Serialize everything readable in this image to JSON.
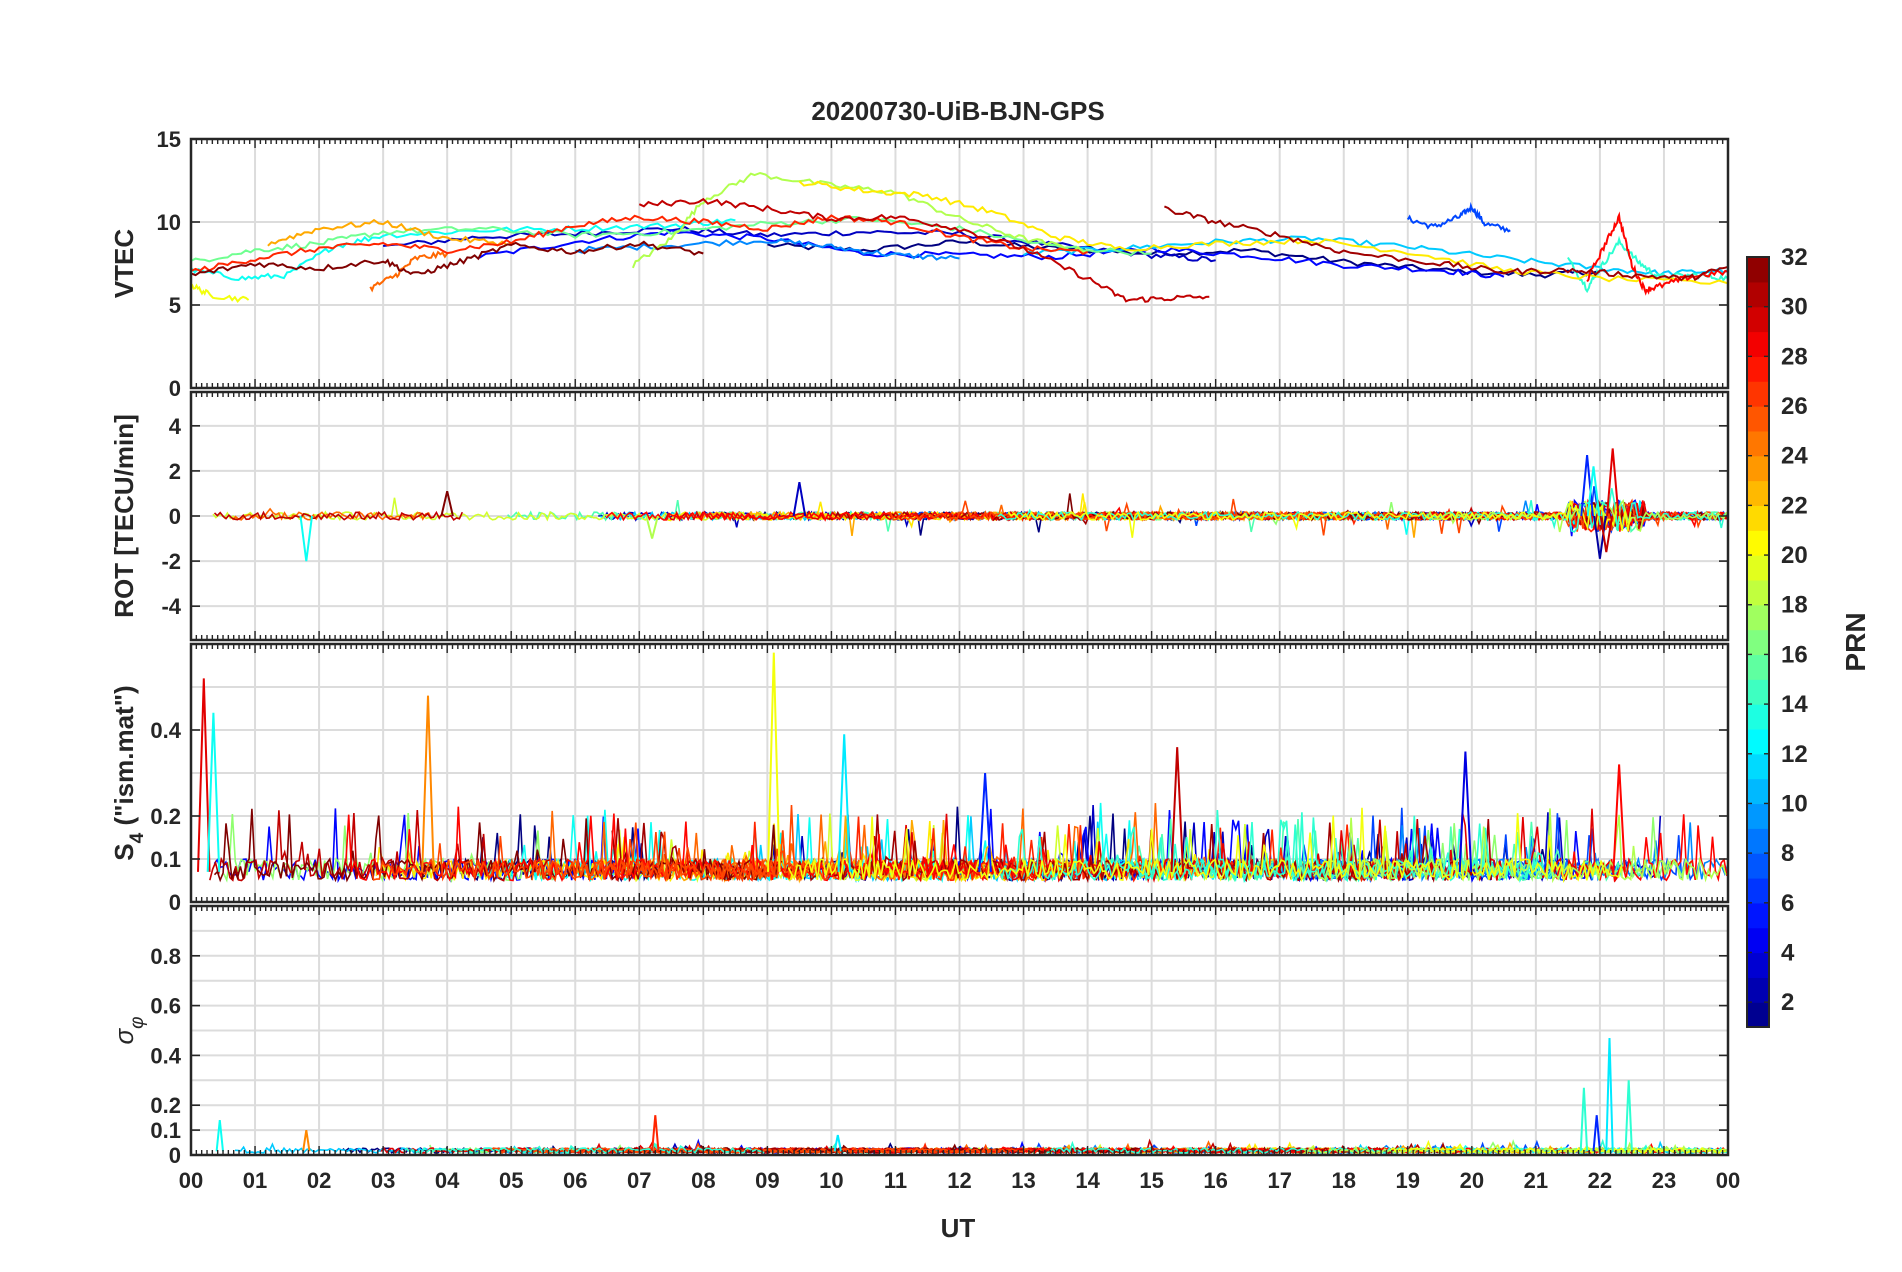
{
  "chart_data": {
    "type": "line",
    "title": "20200730-UiB-BJN-GPS",
    "xlabel": "UT",
    "x_range_hours": [
      0,
      24
    ],
    "x_ticks": [
      "00",
      "01",
      "02",
      "03",
      "04",
      "05",
      "06",
      "07",
      "08",
      "09",
      "10",
      "11",
      "12",
      "13",
      "14",
      "15",
      "16",
      "17",
      "18",
      "19",
      "20",
      "21",
      "22",
      "23",
      "00"
    ],
    "colorbar": {
      "label": "PRN",
      "colormap": "jet",
      "range": [
        1,
        32
      ],
      "ticks": [
        2,
        4,
        6,
        8,
        10,
        12,
        14,
        16,
        18,
        20,
        22,
        24,
        26,
        28,
        30,
        32
      ]
    },
    "panels": [
      {
        "id": "vtec",
        "ylabel": "VTEC",
        "ylim": [
          0,
          15
        ],
        "yticks": [
          0,
          5,
          10,
          15
        ],
        "grid": true,
        "series": [
          {
            "prn": 1,
            "points": [
              [
                9.0,
                8.6
              ],
              [
                10.5,
                8.3
              ],
              [
                12.0,
                8.8
              ],
              [
                13.5,
                8.4
              ],
              [
                15.0,
                8.1
              ],
              [
                16.5,
                8.3
              ],
              [
                18.0,
                7.6
              ],
              [
                19.5,
                7.1
              ],
              [
                21.0,
                6.8
              ],
              [
                22.0,
                7.0
              ]
            ]
          },
          {
            "prn": 3,
            "points": [
              [
                3.0,
                8.5
              ],
              [
                4.5,
                9.1
              ],
              [
                6.0,
                9.3
              ],
              [
                7.5,
                9.6
              ],
              [
                9.0,
                9.2
              ],
              [
                10.5,
                9.4
              ],
              [
                12.0,
                9.3
              ],
              [
                13.5,
                8.6
              ],
              [
                15.0,
                8.0
              ],
              [
                16.0,
                7.7
              ]
            ]
          },
          {
            "prn": 5,
            "points": [
              [
                4.5,
                7.9
              ],
              [
                6.0,
                8.8
              ],
              [
                7.5,
                9.4
              ],
              [
                9.0,
                9.0
              ],
              [
                10.5,
                8.1
              ],
              [
                12.0,
                8.0
              ],
              [
                13.5,
                7.9
              ],
              [
                15.0,
                8.4
              ],
              [
                16.5,
                8.0
              ],
              [
                18.0,
                7.4
              ],
              [
                19.5,
                7.1
              ],
              [
                20.5,
                6.7
              ]
            ]
          },
          {
            "prn": 7,
            "points": [
              [
                19.0,
                10.2
              ],
              [
                19.4,
                9.7
              ],
              [
                19.8,
                10.3
              ],
              [
                20.0,
                10.9
              ],
              [
                20.2,
                9.9
              ],
              [
                20.6,
                9.5
              ]
            ]
          },
          {
            "prn": 9,
            "points": [
              [
                6.0,
                8.3
              ],
              [
                7.5,
                8.6
              ],
              [
                9.0,
                8.9
              ],
              [
                10.0,
                8.5
              ],
              [
                11.0,
                8.0
              ],
              [
                12.0,
                7.8
              ]
            ]
          },
          {
            "prn": 11,
            "points": [
              [
                13.0,
                8.1
              ],
              [
                14.5,
                8.4
              ],
              [
                16.0,
                8.8
              ],
              [
                17.5,
                9.0
              ],
              [
                19.0,
                8.5
              ],
              [
                20.5,
                7.8
              ],
              [
                22.0,
                7.2
              ],
              [
                23.0,
                6.9
              ],
              [
                24.0,
                7.1
              ]
            ]
          },
          {
            "prn": 13,
            "points": [
              [
                0.0,
                7.1
              ],
              [
                0.8,
                6.6
              ],
              [
                1.5,
                6.8
              ],
              [
                2.2,
                8.5
              ],
              [
                3.0,
                9.2
              ],
              [
                4.5,
                9.5
              ],
              [
                6.0,
                9.6
              ],
              [
                7.5,
                9.8
              ],
              [
                8.5,
                10.1
              ]
            ]
          },
          {
            "prn": 14,
            "points": [
              [
                21.5,
                7.8
              ],
              [
                21.8,
                6.0
              ],
              [
                22.0,
                7.2
              ],
              [
                22.3,
                8.8
              ],
              [
                22.6,
                7.6
              ],
              [
                22.9,
                6.7
              ],
              [
                23.5,
                6.8
              ],
              [
                24.0,
                6.6
              ]
            ]
          },
          {
            "prn": 16,
            "points": [
              [
                0.0,
                7.6
              ],
              [
                1.0,
                8.3
              ],
              [
                2.0,
                8.7
              ],
              [
                3.0,
                9.4
              ],
              [
                4.5,
                9.6
              ],
              [
                6.0,
                9.2
              ],
              [
                7.5,
                9.4
              ],
              [
                9.0,
                9.9
              ],
              [
                10.5,
                10.2
              ],
              [
                12.0,
                9.6
              ],
              [
                13.5,
                8.5
              ],
              [
                15.0,
                8.1
              ]
            ]
          },
          {
            "prn": 18,
            "points": [
              [
                6.9,
                7.4
              ],
              [
                7.5,
                9.0
              ],
              [
                8.0,
                11.3
              ],
              [
                8.8,
                12.9
              ],
              [
                10.0,
                12.2
              ],
              [
                11.0,
                11.8
              ],
              [
                12.0,
                10.2
              ],
              [
                13.0,
                9.0
              ],
              [
                14.0,
                8.2
              ]
            ]
          },
          {
            "prn": 20,
            "points": [
              [
                0.0,
                6.2
              ],
              [
                0.3,
                5.6
              ],
              [
                0.9,
                5.3
              ]
            ]
          },
          {
            "prn": 21,
            "points": [
              [
                9.5,
                12.4
              ],
              [
                10.5,
                11.9
              ],
              [
                11.5,
                11.6
              ],
              [
                12.5,
                10.6
              ],
              [
                13.5,
                9.1
              ],
              [
                14.5,
                8.4
              ],
              [
                16.0,
                8.7
              ],
              [
                17.5,
                8.9
              ],
              [
                19.0,
                8.2
              ],
              [
                20.5,
                7.1
              ],
              [
                22.0,
                6.6
              ],
              [
                24.0,
                6.3
              ]
            ]
          },
          {
            "prn": 23,
            "points": [
              [
                1.2,
                8.7
              ],
              [
                2.0,
                9.6
              ],
              [
                3.0,
                10.0
              ],
              [
                4.0,
                9.0
              ],
              [
                5.0,
                8.7
              ]
            ]
          },
          {
            "prn": 25,
            "points": [
              [
                2.8,
                6.0
              ],
              [
                3.2,
                6.8
              ],
              [
                3.5,
                7.8
              ],
              [
                4.0,
                8.1
              ]
            ]
          },
          {
            "prn": 27,
            "points": [
              [
                0.0,
                7.0
              ],
              [
                1.0,
                7.8
              ],
              [
                2.0,
                8.4
              ],
              [
                3.0,
                8.7
              ],
              [
                4.0,
                8.3
              ],
              [
                5.0,
                8.8
              ],
              [
                6.0,
                9.8
              ],
              [
                7.0,
                10.3
              ],
              [
                8.0,
                10.0
              ],
              [
                9.0,
                9.6
              ],
              [
                10.0,
                10.3
              ],
              [
                11.0,
                10.0
              ],
              [
                12.0,
                9.1
              ],
              [
                13.0,
                8.4
              ],
              [
                14.0,
                8.2
              ]
            ]
          },
          {
            "prn": 28,
            "points": [
              [
                21.8,
                6.5
              ],
              [
                22.1,
                8.8
              ],
              [
                22.3,
                10.3
              ],
              [
                22.5,
                7.4
              ],
              [
                22.7,
                5.9
              ],
              [
                22.9,
                6.1
              ],
              [
                23.4,
                6.7
              ],
              [
                24.0,
                7.0
              ]
            ]
          },
          {
            "prn": 30,
            "points": [
              [
                7.0,
                11.0
              ],
              [
                8.0,
                11.3
              ],
              [
                9.0,
                10.8
              ],
              [
                10.0,
                10.2
              ],
              [
                11.0,
                10.3
              ],
              [
                12.0,
                9.6
              ],
              [
                13.0,
                8.4
              ],
              [
                14.0,
                6.6
              ],
              [
                14.6,
                5.3
              ],
              [
                15.2,
                5.4
              ],
              [
                15.9,
                5.5
              ]
            ]
          },
          {
            "prn": 31,
            "points": [
              [
                15.2,
                10.8
              ],
              [
                16.0,
                10.0
              ],
              [
                17.0,
                9.2
              ],
              [
                18.0,
                8.2
              ],
              [
                19.5,
                7.5
              ],
              [
                20.5,
                7.0
              ],
              [
                21.5,
                7.1
              ],
              [
                22.5,
                6.8
              ],
              [
                23.4,
                6.6
              ],
              [
                24.0,
                7.3
              ]
            ]
          },
          {
            "prn": 32,
            "points": [
              [
                0.0,
                6.8
              ],
              [
                1.0,
                7.5
              ],
              [
                2.0,
                7.2
              ],
              [
                3.0,
                7.7
              ],
              [
                3.5,
                6.8
              ],
              [
                4.2,
                7.6
              ],
              [
                5.0,
                8.6
              ],
              [
                6.0,
                8.2
              ],
              [
                7.0,
                8.7
              ],
              [
                8.0,
                8.1
              ]
            ]
          }
        ]
      },
      {
        "id": "rot",
        "ylabel": "ROT [TECU/min]",
        "ylim": [
          -5.5,
          5.5
        ],
        "yticks": [
          -4,
          -2,
          0,
          2,
          4
        ],
        "grid": true,
        "spikes": [
          {
            "prn": 13,
            "hour": 1.8,
            "value": -2.0
          },
          {
            "prn": 3,
            "hour": 9.5,
            "value": 1.5
          },
          {
            "prn": 6,
            "hour": 21.8,
            "value": 2.7
          },
          {
            "prn": 13,
            "hour": 21.9,
            "value": 2.2
          },
          {
            "prn": 2,
            "hour": 22.0,
            "value": -1.9
          },
          {
            "prn": 29,
            "hour": 22.2,
            "value": 3.0
          },
          {
            "prn": 30,
            "hour": 22.1,
            "value": -1.6
          },
          {
            "prn": 18,
            "hour": 7.2,
            "value": -1.0
          },
          {
            "prn": 32,
            "hour": 4.0,
            "value": 1.1
          }
        ]
      },
      {
        "id": "s4",
        "ylabel": "S4 (\"ism.mat\")",
        "ylabel_parts": {
          "main": "S",
          "sub": "4",
          "rest": " (\"ism.mat\")"
        },
        "ylim": [
          0,
          0.6
        ],
        "yticks": [
          0,
          0.1,
          0.2,
          0.4
        ],
        "grid": true,
        "peaks": [
          {
            "prn": 29,
            "hour": 0.2,
            "value": 0.52
          },
          {
            "prn": 13,
            "hour": 0.35,
            "value": 0.44
          },
          {
            "prn": 24,
            "hour": 3.7,
            "value": 0.48
          },
          {
            "prn": 20,
            "hour": 9.1,
            "value": 0.58
          },
          {
            "prn": 12,
            "hour": 10.2,
            "value": 0.39
          },
          {
            "prn": 30,
            "hour": 15.4,
            "value": 0.36
          },
          {
            "prn": 4,
            "hour": 19.9,
            "value": 0.35
          },
          {
            "prn": 28,
            "hour": 22.3,
            "value": 0.32
          },
          {
            "prn": 6,
            "hour": 12.4,
            "value": 0.3
          }
        ]
      },
      {
        "id": "sigma",
        "ylabel": "σ φ",
        "ylabel_parts": {
          "main": "σ",
          "sub": "φ"
        },
        "ylim": [
          0,
          1
        ],
        "yticks": [
          0,
          0.1,
          0.2,
          0.4,
          0.6,
          0.8
        ],
        "grid": true,
        "peaks": [
          {
            "prn": 13,
            "hour": 0.45,
            "value": 0.14
          },
          {
            "prn": 24,
            "hour": 1.8,
            "value": 0.1
          },
          {
            "prn": 27,
            "hour": 7.25,
            "value": 0.16
          },
          {
            "prn": 12,
            "hour": 10.1,
            "value": 0.08
          },
          {
            "prn": 14,
            "hour": 21.75,
            "value": 0.27
          },
          {
            "prn": 12,
            "hour": 22.15,
            "value": 0.47
          },
          {
            "prn": 14,
            "hour": 22.45,
            "value": 0.3
          },
          {
            "prn": 6,
            "hour": 21.95,
            "value": 0.16
          }
        ]
      }
    ]
  }
}
